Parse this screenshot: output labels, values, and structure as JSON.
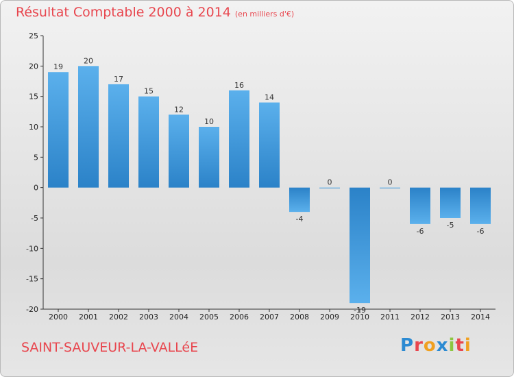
{
  "title": "Résultat Comptable 2000 à 2014",
  "subtitle": "(en milliers d'€)",
  "commune": "SAINT-SAUVEUR-LA-VALLéE",
  "logo": {
    "letters": [
      "P",
      "r",
      "o",
      "x",
      "i",
      "t",
      "i"
    ],
    "colors": [
      "#2b8ad2",
      "#e8464e",
      "#f0a020",
      "#2b8ad2",
      "#8cc63f",
      "#e8464e",
      "#f0a020"
    ]
  },
  "colors": {
    "bar": "#2b82c8",
    "bar_light": "#5bb0ec",
    "axis": "#333333",
    "title": "#e8464e"
  },
  "chart_data": {
    "type": "bar",
    "title": "Résultat Comptable 2000 à 2014",
    "subtitle": "(en milliers d'€)",
    "categories": [
      "2000",
      "2001",
      "2002",
      "2003",
      "2004",
      "2005",
      "2006",
      "2007",
      "2008",
      "2009",
      "2010",
      "2011",
      "2012",
      "2013",
      "2014"
    ],
    "values": [
      19,
      20,
      17,
      15,
      12,
      10,
      16,
      14,
      -4,
      0,
      -19,
      0,
      -6,
      -5,
      -6
    ],
    "ylim": [
      -20,
      25
    ],
    "yticks": [
      25,
      20,
      15,
      10,
      5,
      0,
      -5,
      -10,
      -15,
      -20
    ],
    "grid": false,
    "xlabel": "",
    "ylabel": ""
  }
}
